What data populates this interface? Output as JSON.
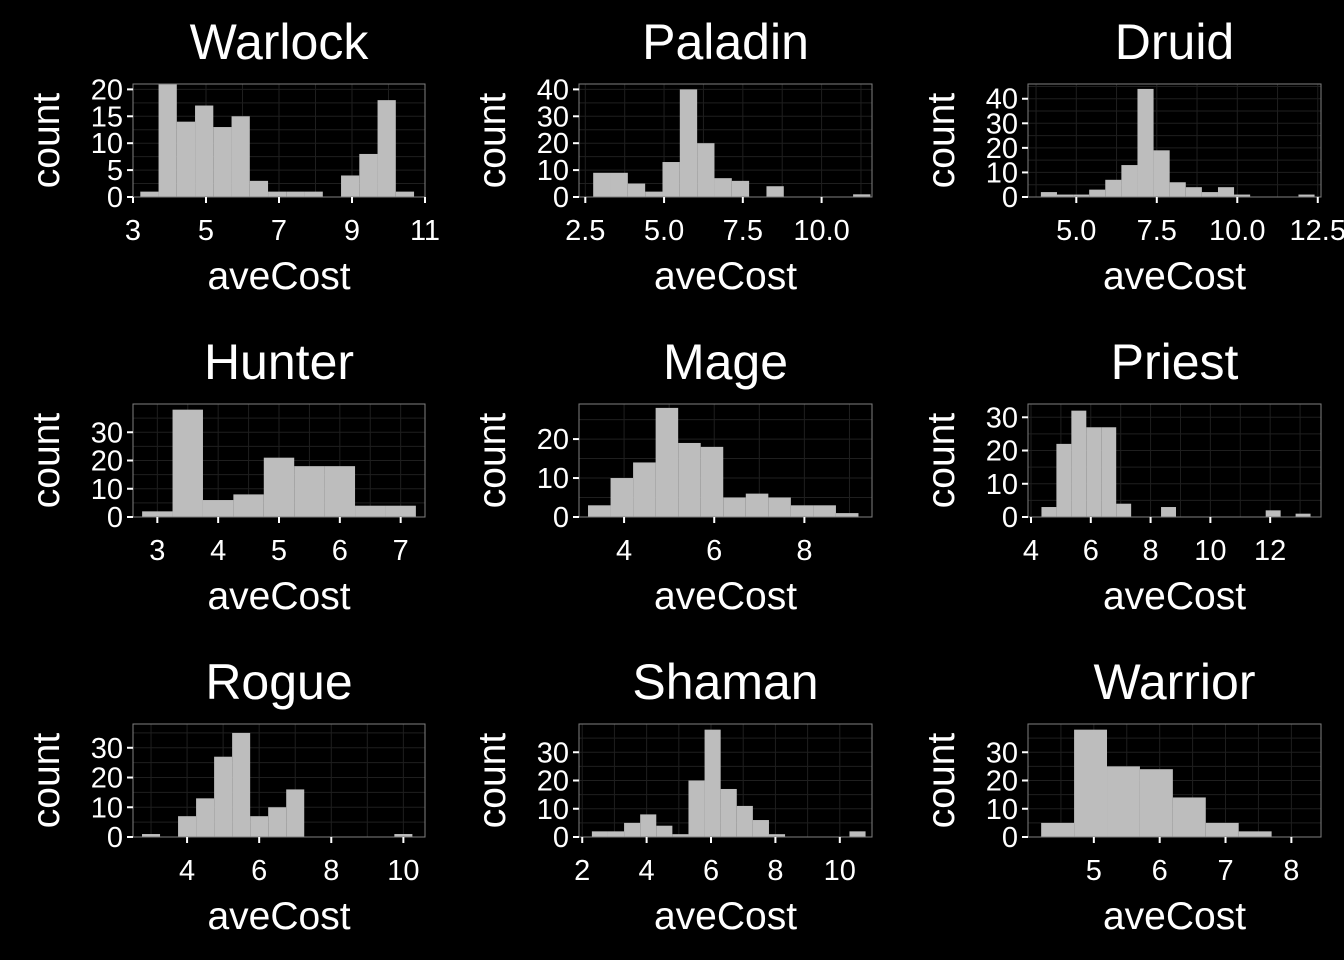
{
  "figure": {
    "background": "#000000",
    "panel_border_color": "#7f7f7f",
    "grid_color": "#1f1f1f",
    "bar_color": "#bdbdbd",
    "text_color": "#ffffff"
  },
  "chart_data": [
    {
      "type": "bar",
      "title": "Warlock",
      "xlabel": "aveCost",
      "ylabel": "count",
      "xlim": [
        3.0,
        11.0
      ],
      "ylim": [
        0,
        21
      ],
      "xticks": [
        3,
        5,
        7,
        9,
        11
      ],
      "xtick_labels": [
        "3",
        "5",
        "7",
        "9",
        "11"
      ],
      "yticks": [
        0,
        5,
        10,
        15,
        20
      ],
      "ytick_labels": [
        "0",
        "5",
        "10",
        "15",
        "20"
      ],
      "bin_edges": [
        3.2,
        3.7,
        4.2,
        4.7,
        5.2,
        5.7,
        6.2,
        6.7,
        7.2,
        7.7,
        8.2,
        8.7,
        9.2,
        9.7,
        10.2,
        10.7
      ],
      "counts": [
        1,
        21,
        14,
        17,
        13,
        15,
        3,
        1,
        1,
        1,
        0,
        4,
        8,
        18,
        1
      ]
    },
    {
      "type": "bar",
      "title": "Paladin",
      "xlabel": "aveCost",
      "ylabel": "count",
      "xlim": [
        2.3,
        11.6
      ],
      "ylim": [
        0,
        42
      ],
      "xticks": [
        2.5,
        5.0,
        7.5,
        10.0
      ],
      "xtick_labels": [
        "2.5",
        "5.0",
        "7.5",
        "10.0"
      ],
      "yticks": [
        0,
        10,
        20,
        30,
        40
      ],
      "ytick_labels": [
        "0",
        "10",
        "20",
        "30",
        "40"
      ],
      "bin_edges": [
        2.75,
        3.3,
        3.85,
        4.4,
        4.95,
        5.5,
        6.05,
        6.6,
        7.15,
        7.7,
        8.25,
        8.8,
        9.35,
        9.9,
        10.45,
        11.0,
        11.55
      ],
      "counts": [
        9,
        9,
        5,
        2,
        13,
        40,
        20,
        7,
        6,
        0,
        4,
        0,
        0,
        0,
        0,
        1
      ]
    },
    {
      "type": "bar",
      "title": "Druid",
      "xlabel": "aveCost",
      "ylabel": "count",
      "xlim": [
        3.5,
        12.6
      ],
      "ylim": [
        0,
        46
      ],
      "xticks": [
        5.0,
        7.5,
        10.0,
        12.5
      ],
      "xtick_labels": [
        "5.0",
        "7.5",
        "10.0",
        "12.5"
      ],
      "yticks": [
        0,
        10,
        20,
        30,
        40
      ],
      "ytick_labels": [
        "0",
        "10",
        "20",
        "30",
        "40"
      ],
      "bin_edges": [
        3.9,
        4.4,
        4.9,
        5.4,
        5.9,
        6.4,
        6.9,
        7.4,
        7.9,
        8.4,
        8.9,
        9.4,
        9.9,
        10.4,
        10.9,
        11.4,
        11.9,
        12.4
      ],
      "counts": [
        2,
        1,
        1,
        3,
        7,
        13,
        44,
        19,
        6,
        4,
        2,
        4,
        1,
        0,
        0,
        0,
        1
      ]
    },
    {
      "type": "bar",
      "title": "Hunter",
      "xlabel": "aveCost",
      "ylabel": "count",
      "xlim": [
        2.6,
        7.4
      ],
      "ylim": [
        0,
        40
      ],
      "xticks": [
        3,
        4,
        5,
        6,
        7
      ],
      "xtick_labels": [
        "3",
        "4",
        "5",
        "6",
        "7"
      ],
      "yticks": [
        0,
        10,
        20,
        30
      ],
      "ytick_labels": [
        "0",
        "10",
        "20",
        "30"
      ],
      "bin_edges": [
        2.75,
        3.25,
        3.75,
        4.25,
        4.75,
        5.25,
        5.75,
        6.25,
        6.75,
        7.25
      ],
      "counts": [
        2,
        38,
        6,
        8,
        21,
        18,
        18,
        4,
        4
      ]
    },
    {
      "type": "bar",
      "title": "Mage",
      "xlabel": "aveCost",
      "ylabel": "count",
      "xlim": [
        3.0,
        9.5
      ],
      "ylim": [
        0,
        29
      ],
      "xticks": [
        4,
        6,
        8
      ],
      "xtick_labels": [
        "4",
        "6",
        "8"
      ],
      "yticks": [
        0,
        10,
        20
      ],
      "ytick_labels": [
        "0",
        "10",
        "20"
      ],
      "bin_edges": [
        3.2,
        3.7,
        4.2,
        4.7,
        5.2,
        5.7,
        6.2,
        6.7,
        7.2,
        7.7,
        8.2,
        8.7,
        9.2
      ],
      "counts": [
        3,
        10,
        14,
        28,
        19,
        18,
        5,
        6,
        5,
        3,
        3,
        1
      ]
    },
    {
      "type": "bar",
      "title": "Priest",
      "xlabel": "aveCost",
      "ylabel": "count",
      "xlim": [
        3.9,
        13.7
      ],
      "ylim": [
        0,
        34
      ],
      "xticks": [
        4,
        6,
        8,
        10,
        12
      ],
      "xtick_labels": [
        "4",
        "6",
        "8",
        "10",
        "12"
      ],
      "yticks": [
        0,
        10,
        20,
        30
      ],
      "ytick_labels": [
        "0",
        "10",
        "20",
        "30"
      ],
      "bin_edges": [
        4.35,
        4.85,
        5.35,
        5.85,
        6.35,
        6.85,
        7.35,
        7.85,
        8.35,
        8.85,
        9.35,
        9.85,
        10.35,
        10.85,
        11.35,
        11.85,
        12.35,
        12.85,
        13.35
      ],
      "counts": [
        3,
        22,
        32,
        27,
        27,
        4,
        0,
        0,
        3,
        0,
        0,
        0,
        0,
        0,
        0,
        2,
        0,
        1
      ]
    },
    {
      "type": "bar",
      "title": "Rogue",
      "xlabel": "aveCost",
      "ylabel": "count",
      "xlim": [
        2.5,
        10.6
      ],
      "ylim": [
        0,
        38
      ],
      "xticks": [
        4,
        6,
        8,
        10
      ],
      "xtick_labels": [
        "4",
        "6",
        "8",
        "10"
      ],
      "yticks": [
        0,
        10,
        20,
        30
      ],
      "ytick_labels": [
        "0",
        "10",
        "20",
        "30"
      ],
      "bin_edges": [
        2.75,
        3.25,
        3.75,
        4.25,
        4.75,
        5.25,
        5.75,
        6.25,
        6.75,
        7.25,
        7.75,
        8.25,
        8.75,
        9.25,
        9.75,
        10.25
      ],
      "counts": [
        1,
        0,
        7,
        13,
        27,
        35,
        7,
        10,
        16,
        0,
        0,
        0,
        0,
        0,
        1
      ]
    },
    {
      "type": "bar",
      "title": "Shaman",
      "xlabel": "aveCost",
      "ylabel": "count",
      "xlim": [
        1.9,
        11.0
      ],
      "ylim": [
        0,
        40
      ],
      "xticks": [
        2,
        4,
        6,
        8,
        10
      ],
      "xtick_labels": [
        "2",
        "4",
        "6",
        "8",
        "10"
      ],
      "yticks": [
        0,
        10,
        20,
        30
      ],
      "ytick_labels": [
        "0",
        "10",
        "20",
        "30"
      ],
      "bin_edges": [
        2.3,
        2.8,
        3.3,
        3.8,
        4.3,
        4.8,
        5.3,
        5.8,
        6.3,
        6.8,
        7.3,
        7.8,
        8.3,
        8.8,
        9.3,
        9.8,
        10.3,
        10.8
      ],
      "counts": [
        2,
        2,
        5,
        8,
        4,
        1,
        20,
        38,
        17,
        11,
        6,
        1,
        0,
        0,
        0,
        0,
        2
      ]
    },
    {
      "type": "bar",
      "title": "Warrior",
      "xlabel": "aveCost",
      "ylabel": "count",
      "xlim": [
        4.0,
        8.45
      ],
      "ylim": [
        0,
        40
      ],
      "xticks": [
        5,
        6,
        7,
        8
      ],
      "xtick_labels": [
        "5",
        "6",
        "7",
        "8"
      ],
      "yticks": [
        0,
        10,
        20,
        30
      ],
      "ytick_labels": [
        "0",
        "10",
        "20",
        "30"
      ],
      "bin_edges": [
        4.2,
        4.7,
        5.2,
        5.7,
        6.2,
        6.7,
        7.2,
        7.7,
        8.2
      ],
      "counts": [
        5,
        38,
        25,
        24,
        14,
        5,
        2,
        0
      ]
    }
  ]
}
